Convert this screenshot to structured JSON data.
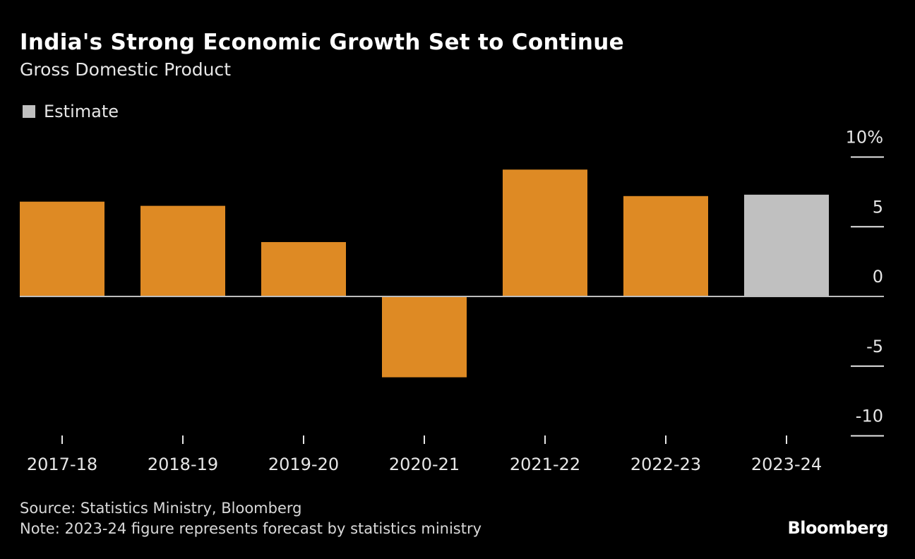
{
  "title": "India's Strong Economic Growth Set to Continue",
  "subtitle": "Gross Domestic Product",
  "legend": [
    {
      "label": "Estimate",
      "color": "#c0c0c0"
    }
  ],
  "source": "Source: Statistics Ministry, Bloomberg",
  "note": "Note: 2023-24 figure represents forecast by statistics ministry",
  "logo": "Bloomberg",
  "chart_data": {
    "type": "bar",
    "title": "India's Strong Economic Growth Set to Continue",
    "subtitle": "Gross Domestic Product",
    "categories": [
      "2017-18",
      "2018-19",
      "2019-20",
      "2020-21",
      "2021-22",
      "2022-23",
      "2023-24"
    ],
    "values": [
      6.8,
      6.5,
      3.9,
      -5.8,
      9.1,
      7.2,
      7.3
    ],
    "estimate": [
      false,
      false,
      false,
      false,
      false,
      false,
      true
    ],
    "colors": {
      "actual": "#de8a24",
      "estimate": "#c0c0c0"
    },
    "ylim": [
      -10,
      10
    ],
    "yticks": [
      10,
      5,
      0,
      -5,
      -10
    ],
    "ytick_labels": [
      "10%",
      "5",
      "0",
      "-5",
      "-10"
    ],
    "y_axis_position": "right",
    "grid": false,
    "legend_position": "top-left"
  }
}
